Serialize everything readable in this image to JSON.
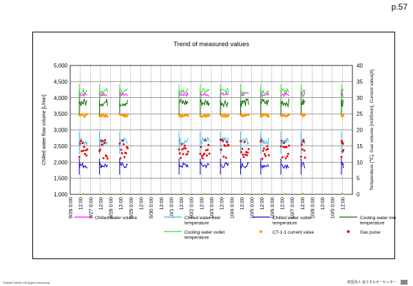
{
  "page": {
    "page_number": "p.57",
    "footer_copyright": "©2008 ©2022 All Rights Reserved",
    "footer_org": "財団法人 省エネルギーセンター"
  },
  "chart_data": {
    "type": "line",
    "title": "Trend of measured values",
    "ylabel_left": "Chilled water flow volume [L/min]",
    "ylabel_right": "Temperature [℃], Gas volume [m3/5min], Current value[A]",
    "ylim_left": [
      1000,
      5000
    ],
    "ylim_right": [
      0,
      40
    ],
    "yticks_left": [
      "1,000",
      "1,500",
      "2,000",
      "2,500",
      "3,000",
      "3,500",
      "4,000",
      "4,500",
      "5,000"
    ],
    "yticks_right": [
      "0",
      "5",
      "10",
      "15",
      "20",
      "25",
      "30",
      "35",
      "40"
    ],
    "x_ticks": [
      "9/26 0:00",
      "12:00",
      "9/27 0:00",
      "12:00",
      "9/28 0:00",
      "12:00",
      "9/29 0:00",
      "12:00",
      "9/30 0:00",
      "12:00",
      "10/1 0:00",
      "12:00",
      "10/2 0:00",
      "12:00",
      "10/3 0:00",
      "12:00",
      "10/4 0:00",
      "12:00",
      "10/5 0:00",
      "12:00",
      "10/6 0:00",
      "12:00",
      "10/7 0:00",
      "12:00",
      "10/8 0:00",
      "12:00",
      "10/9 0:00",
      "12:00"
    ],
    "grid": true,
    "active_periods_day_index": [
      [
        0.45,
        0.85
      ],
      [
        1.45,
        1.85
      ],
      [
        2.45,
        2.85
      ],
      [
        5.4,
        5.85
      ],
      [
        6.45,
        6.9
      ],
      [
        7.45,
        7.85
      ],
      [
        8.45,
        8.85
      ],
      [
        9.45,
        9.85
      ],
      [
        10.45,
        10.85
      ],
      [
        11.45,
        11.65
      ],
      [
        13.45,
        13.55
      ]
    ],
    "series": [
      {
        "name": "Chilled water volume",
        "axis": "left",
        "color": "#ff00ff",
        "typical": 4100
      },
      {
        "name": "Chilled water inlet temperature",
        "axis": "right",
        "color": "#33bbee",
        "typical": 16.5
      },
      {
        "name": "Chilled water outlet temperature",
        "axis": "right",
        "color": "#0000cc",
        "typical": 9.0
      },
      {
        "name": "Cooling water inlet temperature",
        "axis": "right",
        "color": "#006600",
        "typical": 28.5
      },
      {
        "name": "Cooling water outlet temperature",
        "axis": "right",
        "color": "#33dd33",
        "typical": 32.0
      },
      {
        "name": "CT-1-1 current value",
        "axis": "right",
        "color": "#ff9900",
        "typical": 24.5,
        "marker": "dot"
      },
      {
        "name": "Gas pulse",
        "axis": "right",
        "color": "#ee0000",
        "typical": 14.0,
        "marker": "dot"
      }
    ],
    "legend": [
      {
        "label": "Chilled water volume",
        "color": "#ff00ff",
        "marker": "line"
      },
      {
        "label": "Chilled water inlet temperature",
        "color": "#33bbee",
        "marker": "line"
      },
      {
        "label": "Chilled water outlet temperature",
        "color": "#0000cc",
        "marker": "line"
      },
      {
        "label": "Cooling water inlet temperature",
        "color": "#006600",
        "marker": "line"
      },
      {
        "label": "Cooling water outlet temperature",
        "color": "#33dd33",
        "marker": "line"
      },
      {
        "label": "CT-1-1 current value",
        "color": "#ff9900",
        "marker": "dot"
      },
      {
        "label": "Gas pulse",
        "color": "#ee0000",
        "marker": "dot"
      }
    ]
  }
}
